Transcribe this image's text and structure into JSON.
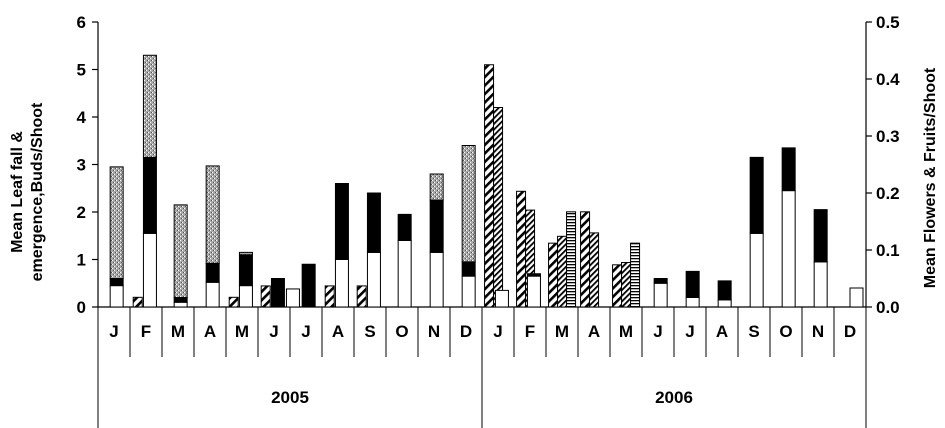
{
  "chart_data": {
    "type": "bar",
    "ylabel_left_line1": "Mean Leaf fall &",
    "ylabel_left_line2": "emergence,Buds/Shoot",
    "ylabel_right": "Mean Flowers & Fruits/Shoot",
    "ylim_left": [
      0,
      6
    ],
    "ylim_right": [
      0,
      0.5
    ],
    "yticks_left": [
      "0",
      "1",
      "2",
      "3",
      "4",
      "5",
      "6"
    ],
    "yticks_right": [
      "0.0",
      "0.1",
      "0.2",
      "0.3",
      "0.4",
      "0.5"
    ],
    "grid": false,
    "legend": "none",
    "months": [
      "J",
      "F",
      "M",
      "A",
      "M",
      "J",
      "J",
      "A",
      "S",
      "O",
      "N",
      "D",
      "J",
      "F",
      "M",
      "A",
      "M",
      "J",
      "J",
      "A",
      "S",
      "O",
      "N",
      "D"
    ],
    "years": [
      "2005",
      "2006"
    ],
    "series": [
      {
        "pattern": "white",
        "axis": "left",
        "stacked_with": "black,stippled",
        "values": [
          0.45,
          1.55,
          0.1,
          0.52,
          0.45,
          0,
          0,
          1.0,
          1.15,
          1.4,
          1.15,
          0.65,
          0.35,
          0.65,
          0,
          0,
          0,
          0.5,
          0.2,
          0.15,
          1.55,
          2.45,
          0.95,
          0
        ]
      },
      {
        "pattern": "black",
        "axis": "left",
        "stacked_with": "white,stippled",
        "values": [
          0.15,
          1.6,
          0.1,
          0.4,
          0.65,
          0.6,
          0.9,
          1.6,
          1.25,
          0.55,
          1.1,
          0.3,
          0,
          0.05,
          0,
          0,
          0,
          0.1,
          0.55,
          0.4,
          1.6,
          0.9,
          1.1,
          0
        ]
      },
      {
        "pattern": "stippled",
        "axis": "left",
        "stacked_with": "white,black",
        "values": [
          2.35,
          2.15,
          1.95,
          2.05,
          0.05,
          0,
          0,
          0,
          0,
          0,
          0.55,
          2.45,
          0,
          0,
          0,
          0,
          0,
          0,
          0,
          0,
          0,
          0,
          0,
          0
        ]
      },
      {
        "pattern": "diagonal-hatch",
        "axis": "right",
        "values": [
          0,
          0.017,
          0,
          0,
          0.017,
          0.037,
          0,
          0.037,
          0.037,
          0,
          0,
          0,
          0.425,
          0.203,
          0.112,
          0.167,
          0.074,
          0,
          0,
          0,
          0,
          0,
          0,
          0
        ]
      },
      {
        "pattern": "dense-diagonal-hatch",
        "axis": "right",
        "values": [
          0,
          0,
          0,
          0,
          0,
          0,
          0,
          0,
          0,
          0,
          0,
          0,
          0.35,
          0.17,
          0.124,
          0.13,
          0.078,
          0,
          0,
          0,
          0,
          0,
          0,
          0
        ]
      },
      {
        "pattern": "horizontal-stripes",
        "axis": "right",
        "values": [
          0,
          0,
          0,
          0,
          0,
          0,
          0,
          0,
          0,
          0,
          0,
          0,
          0,
          0,
          0.167,
          0,
          0.112,
          0,
          0,
          0,
          0,
          0,
          0,
          0
        ]
      },
      {
        "pattern": "plain-white",
        "axis": "left",
        "values": [
          0,
          0,
          0,
          0,
          0,
          0.38,
          0,
          0,
          0,
          0,
          0,
          0,
          0,
          0,
          0,
          0,
          0,
          0,
          0,
          0,
          0,
          0,
          0,
          0.4
        ]
      }
    ]
  }
}
